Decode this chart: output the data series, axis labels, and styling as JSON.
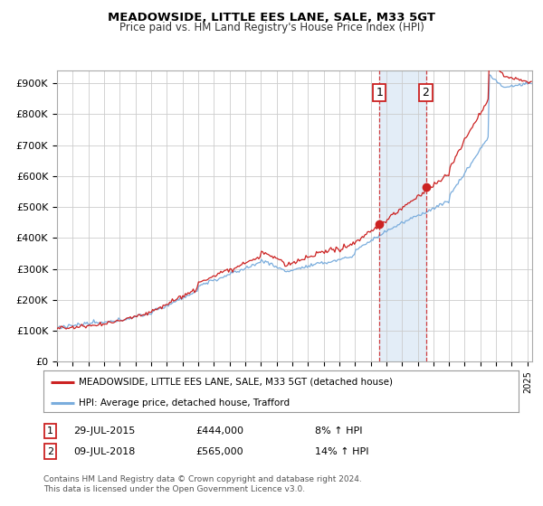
{
  "title": "MEADOWSIDE, LITTLE EES LANE, SALE, M33 5GT",
  "subtitle": "Price paid vs. HM Land Registry's House Price Index (HPI)",
  "ylabel_ticks": [
    "£0",
    "£100K",
    "£200K",
    "£300K",
    "£400K",
    "£500K",
    "£600K",
    "£700K",
    "£800K",
    "£900K"
  ],
  "ytick_values": [
    0,
    100000,
    200000,
    300000,
    400000,
    500000,
    600000,
    700000,
    800000,
    900000
  ],
  "ylim": [
    0,
    940000
  ],
  "xlim_start": 1995.0,
  "xlim_end": 2025.3,
  "line1_color": "#cc2222",
  "line2_color": "#7aaddd",
  "marker1_date": 2015.57,
  "marker2_date": 2018.52,
  "marker1_value": 444000,
  "marker2_value": 565000,
  "annotation1_label": "1",
  "annotation2_label": "2",
  "legend_line1": "MEADOWSIDE, LITTLE EES LANE, SALE, M33 5GT (detached house)",
  "legend_line2": "HPI: Average price, detached house, Trafford",
  "table_row1": [
    "1",
    "29-JUL-2015",
    "£444,000",
    "8% ↑ HPI"
  ],
  "table_row2": [
    "2",
    "09-JUL-2018",
    "£565,000",
    "14% ↑ HPI"
  ],
  "footer": "Contains HM Land Registry data © Crown copyright and database right 2024.\nThis data is licensed under the Open Government Licence v3.0.",
  "background_color": "#ffffff",
  "plot_bg_color": "#ffffff",
  "grid_color": "#cccccc",
  "shade_color": "#dce9f5"
}
